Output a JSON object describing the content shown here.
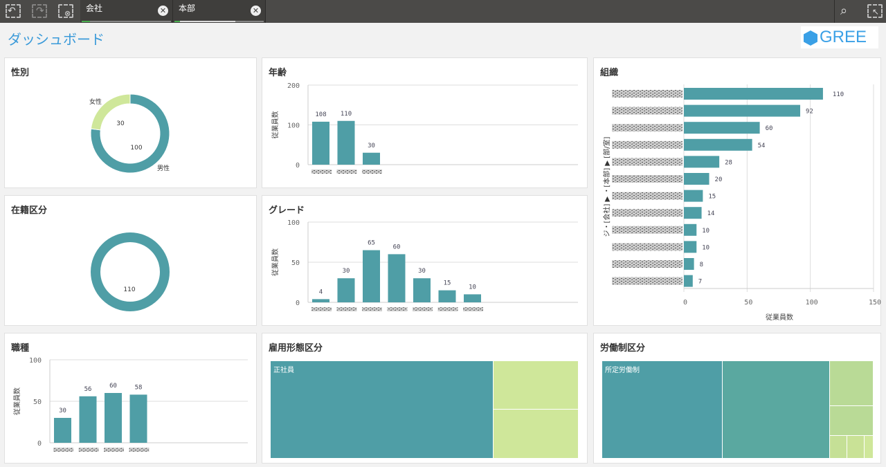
{
  "toolbar": {
    "icons": [
      "back-selection-icon",
      "forward-selection-icon",
      "clear-selections-icon",
      "search-icon",
      "selection-tool-icon"
    ],
    "filters": [
      {
        "label": "会社"
      },
      {
        "label": "本部"
      }
    ]
  },
  "header": {
    "title": "ダッシュボード",
    "logo": "GREE"
  },
  "colors": {
    "teal": "#4f9ea6",
    "teal2": "#5aa8a0",
    "lightgreen": "#cfe79a",
    "green2": "#b9da96",
    "accent": "#3a9ad9"
  },
  "panels": {
    "gender": {
      "title": "性別"
    },
    "age": {
      "title": "年齢"
    },
    "org": {
      "title": "組織"
    },
    "status": {
      "title": "在籍区分"
    },
    "grade": {
      "title": "グレード"
    },
    "job": {
      "title": "職種"
    },
    "employment": {
      "title": "雇用形態区分",
      "label": "正社員"
    },
    "labor": {
      "title": "労働制区分",
      "label": "所定労働制"
    }
  },
  "chart_data": [
    {
      "id": "gender",
      "type": "pie",
      "slices": [
        {
          "label": "男性",
          "value": 100
        },
        {
          "label": "女性",
          "value": 30
        }
      ]
    },
    {
      "id": "status",
      "type": "pie",
      "slices": [
        {
          "label": "",
          "value": 110
        }
      ]
    },
    {
      "id": "age",
      "type": "bar",
      "ylabel": "従業員数",
      "ylim": [
        0,
        200
      ],
      "yticks": [
        0,
        100,
        200
      ],
      "values": [
        108,
        110,
        30
      ]
    },
    {
      "id": "grade",
      "type": "bar",
      "ylabel": "従業員数",
      "ylim": [
        0,
        100
      ],
      "yticks": [
        0,
        50,
        100
      ],
      "values": [
        4,
        30,
        65,
        60,
        30,
        15,
        10
      ]
    },
    {
      "id": "job",
      "type": "bar",
      "ylabel": "従業員数",
      "ylim": [
        0,
        100
      ],
      "yticks": [
        0,
        50,
        100
      ],
      "values": [
        30,
        56,
        60,
        58
      ]
    },
    {
      "id": "org",
      "type": "bar",
      "orientation": "horizontal",
      "xlabel": "従業員数",
      "ylabel": "ジ・[会社] ▶ ・[本部] ▶ [部/室]",
      "xlim": [
        0,
        150
      ],
      "xticks": [
        0,
        50,
        100,
        150
      ],
      "values": [
        110,
        92,
        60,
        54,
        28,
        20,
        15,
        14,
        10,
        10,
        8,
        7
      ]
    }
  ]
}
